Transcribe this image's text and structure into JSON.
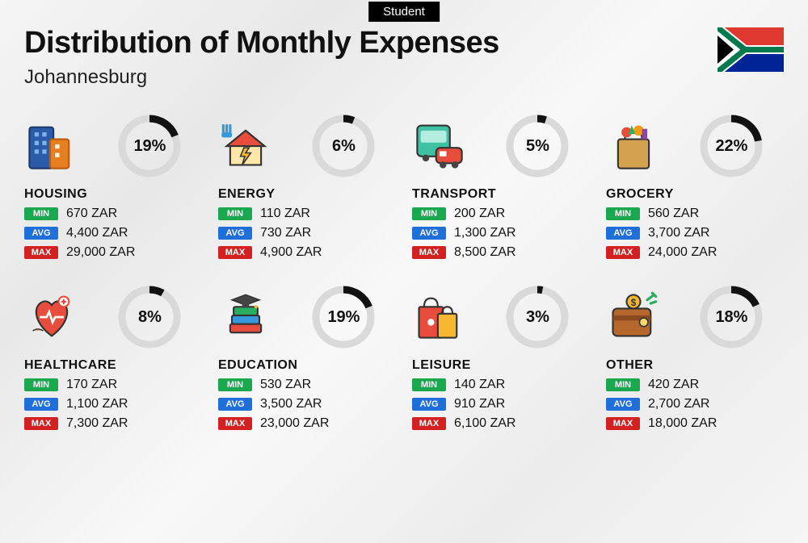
{
  "tag": "Student",
  "title": "Distribution of Monthly Expenses",
  "subtitle": "Johannesburg",
  "currency": "ZAR",
  "badges": {
    "min": "MIN",
    "avg": "AVG",
    "max": "MAX"
  },
  "colors": {
    "ring_track": "#d9d9d9",
    "ring_progress": "#111111",
    "min": "#1aa84f",
    "avg": "#1e6fd9",
    "max": "#d32020"
  },
  "ring": {
    "radius": 34,
    "stroke_width": 9
  },
  "categories": [
    {
      "key": "housing",
      "label": "HOUSING",
      "pct": 19,
      "min": "670",
      "avg": "4,400",
      "max": "29,000",
      "icon": "buildings"
    },
    {
      "key": "energy",
      "label": "ENERGY",
      "pct": 6,
      "min": "110",
      "avg": "730",
      "max": "4,900",
      "icon": "power-house"
    },
    {
      "key": "transport",
      "label": "TRANSPORT",
      "pct": 5,
      "min": "200",
      "avg": "1,300",
      "max": "8,500",
      "icon": "bus-car"
    },
    {
      "key": "grocery",
      "label": "GROCERY",
      "pct": 22,
      "min": "560",
      "avg": "3,700",
      "max": "24,000",
      "icon": "grocery-bag"
    },
    {
      "key": "healthcare",
      "label": "HEALTHCARE",
      "pct": 8,
      "min": "170",
      "avg": "1,100",
      "max": "7,300",
      "icon": "health-heart"
    },
    {
      "key": "education",
      "label": "EDUCATION",
      "pct": 19,
      "min": "530",
      "avg": "3,500",
      "max": "23,000",
      "icon": "grad-books"
    },
    {
      "key": "leisure",
      "label": "LEISURE",
      "pct": 3,
      "min": "140",
      "avg": "910",
      "max": "6,100",
      "icon": "shopping-bags"
    },
    {
      "key": "other",
      "label": "OTHER",
      "pct": 18,
      "min": "420",
      "avg": "2,700",
      "max": "18,000",
      "icon": "wallet"
    }
  ]
}
